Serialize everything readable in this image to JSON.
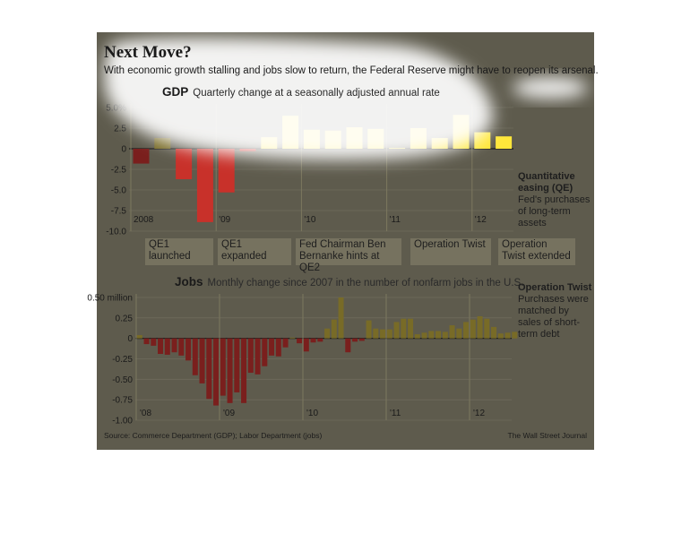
{
  "header": {
    "title": "Next Move?",
    "subtitle": "With economic growth stalling and jobs slow to return, the Federal Reserve might have to reopen its arsenal."
  },
  "events": [
    {
      "label": "QE1 launched"
    },
    {
      "label": "QE1 expanded"
    },
    {
      "label": "Fed Chairman Ben Bernanke hints at QE2"
    },
    {
      "label": "Operation Twist"
    },
    {
      "label": "Operation Twist extended"
    }
  ],
  "side_notes": {
    "qe": {
      "heading": "Quantitative easing (QE)",
      "text": "Fed's purchases of long-term assets"
    },
    "twist": {
      "heading": "Operation Twist",
      "text": "Purchases were matched by sales of short-term debt"
    }
  },
  "footer": {
    "source": "Source: Commerce Department (GDP); Labor Department (jobs)",
    "credit": "The Wall Street Journal"
  },
  "colors": {
    "panel": "#5e5b4d",
    "negative": "#7a1f1d",
    "positive": "#786b27",
    "highlight": "#ffe73a",
    "negative_highlight": "#c8312a"
  },
  "chart_data": [
    {
      "type": "bar",
      "name": "GDP",
      "title": "GDP",
      "subtitle": "Quarterly change at a seasonally adjusted annual rate",
      "ylim": [
        -10,
        5
      ],
      "yticks": [
        "5.0%",
        "2.5",
        "0",
        "-2.5",
        "-5.0",
        "-7.5",
        "-10.0"
      ],
      "year_labels": [
        "2008",
        "'09",
        "'10",
        "'11",
        "'12"
      ],
      "categories": [
        "2008 Q1",
        "2008 Q2",
        "2008 Q3",
        "2008 Q4",
        "2009 Q1",
        "2009 Q2",
        "2009 Q3",
        "2009 Q4",
        "2010 Q1",
        "2010 Q2",
        "2010 Q3",
        "2010 Q4",
        "2011 Q1",
        "2011 Q2",
        "2011 Q3",
        "2011 Q4",
        "2012 Q1",
        "2012 Q2"
      ],
      "values": [
        -1.8,
        1.3,
        -3.7,
        -8.9,
        -5.3,
        -0.3,
        1.4,
        4.0,
        2.3,
        2.2,
        2.6,
        2.4,
        0.1,
        2.5,
        1.3,
        4.1,
        2.0,
        1.5
      ]
    },
    {
      "type": "bar",
      "name": "Jobs",
      "title": "Jobs",
      "subtitle": "Monthly change since 2007 in the number of nonfarm jobs in the U.S.",
      "ylim": [
        -1.0,
        0.5
      ],
      "yticks": [
        "0.50 million",
        "0.25",
        "0",
        "-0.25",
        "-0.50",
        "-0.75",
        "-1.00"
      ],
      "year_labels": [
        "'08",
        "'09",
        "'10",
        "'11",
        "'12"
      ],
      "values": [
        0.04,
        -0.07,
        -0.09,
        -0.19,
        -0.2,
        -0.17,
        -0.21,
        -0.27,
        -0.45,
        -0.55,
        -0.74,
        -0.82,
        -0.7,
        -0.79,
        -0.66,
        -0.79,
        -0.42,
        -0.44,
        -0.34,
        -0.21,
        -0.22,
        -0.11,
        0.01,
        -0.06,
        -0.16,
        -0.05,
        -0.04,
        0.12,
        0.23,
        0.5,
        -0.17,
        -0.04,
        -0.03,
        0.22,
        0.12,
        0.11,
        0.11,
        0.2,
        0.24,
        0.24,
        0.05,
        0.07,
        0.09,
        0.09,
        0.08,
        0.16,
        0.12,
        0.2,
        0.23,
        0.27,
        0.24,
        0.14,
        0.06,
        0.07,
        0.08
      ]
    }
  ]
}
